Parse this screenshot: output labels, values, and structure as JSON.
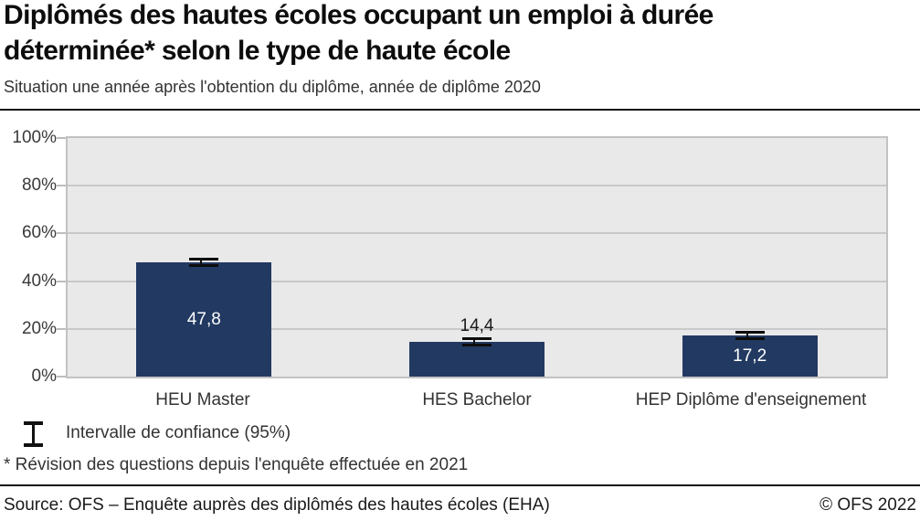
{
  "header": {
    "title_lines": [
      "Diplômés des hautes écoles occupant un emploi à durée",
      "déterminée* selon le type de haute école"
    ],
    "subtitle": "Situation une année après l'obtention du diplôme, année de diplôme 2020"
  },
  "chart_data": {
    "type": "bar",
    "categories": [
      "HEU Master",
      "HES Bachelor",
      "HEP Diplôme d'enseignement"
    ],
    "values": [
      47.8,
      14.4,
      17.2
    ],
    "value_labels": [
      "47,8",
      "14,4",
      "17,2"
    ],
    "label_positions": [
      "inside",
      "above",
      "inside"
    ],
    "y_ticks": [
      "100%",
      "80%",
      "60%",
      "40%",
      "20%",
      "0%"
    ],
    "ylim": [
      0,
      100
    ],
    "grid": true,
    "legend_position": "bottom-left",
    "bar_color": "#223a62",
    "plot_background": "#e9e9e9",
    "error_bars": {
      "visible": true,
      "ci_half_width_approx_pct": 1.9
    }
  },
  "legend": {
    "icon": "error-bar-icon",
    "label": "Intervalle de confiance (95%)"
  },
  "footnote": "* Révision des questions depuis l'enquête effectuée en 2021",
  "footer": {
    "source": "Source: OFS – Enquête auprès des diplômés des hautes écoles (EHA)",
    "copyright": "© OFS 2022"
  }
}
